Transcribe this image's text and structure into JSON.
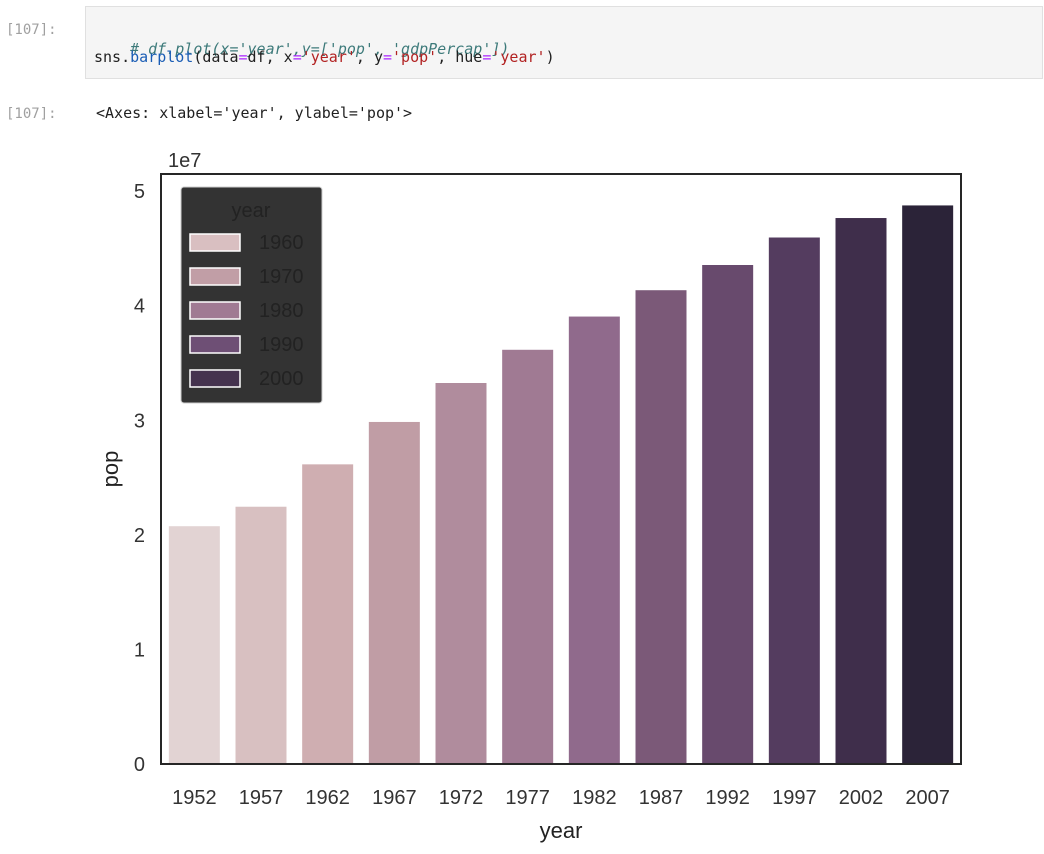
{
  "cell": {
    "input_prompt": "[107]:",
    "output_prompt": "[107]:",
    "code_line1": "# df.plot(x='year',y=['pop', 'gdpPercap'])",
    "code_line2": {
      "t1": "sns.",
      "t2": "barplot",
      "t3": "(data",
      "t4": "=",
      "t5": "df, x",
      "t6": "=",
      "t7": "'year'",
      "t8": ", y",
      "t9": "=",
      "t10": "'pop'",
      "t11": ", hue",
      "t12": "=",
      "t13": "'year'",
      "t14": ")"
    },
    "output_text": "<Axes: xlabel='year', ylabel='pop'>"
  },
  "chart_data": {
    "type": "bar",
    "categories": [
      "1952",
      "1957",
      "1962",
      "1967",
      "1972",
      "1977",
      "1982",
      "1987",
      "1992",
      "1997",
      "2002",
      "2007"
    ],
    "values": [
      20.8,
      22.5,
      26.2,
      29.9,
      33.3,
      36.2,
      39.1,
      41.4,
      43.6,
      46.0,
      47.7,
      48.8
    ],
    "colors": [
      "#e2d3d3",
      "#d8c0c1",
      "#cfaeb1",
      "#c09da5",
      "#b08c9d",
      "#a07a93",
      "#906a8c",
      "#7b5978",
      "#684a6d",
      "#543c5f",
      "#3f2e4b",
      "#2b2338"
    ],
    "title": "",
    "xlabel": "year",
    "ylabel": "pop",
    "yticks": [
      "0",
      "1",
      "2",
      "3",
      "4",
      "5"
    ],
    "offset_label": "1e7",
    "ylim": [
      0,
      51.5
    ],
    "legend": {
      "title": "year",
      "entries": [
        "1960",
        "1970",
        "1980",
        "1990",
        "2000"
      ],
      "colors": [
        "#d9bfc1",
        "#c19ea6",
        "#a07a93",
        "#6e4f75",
        "#45334f"
      ],
      "background": "#2f2f2f",
      "placement": "top-left"
    },
    "grid": false
  }
}
